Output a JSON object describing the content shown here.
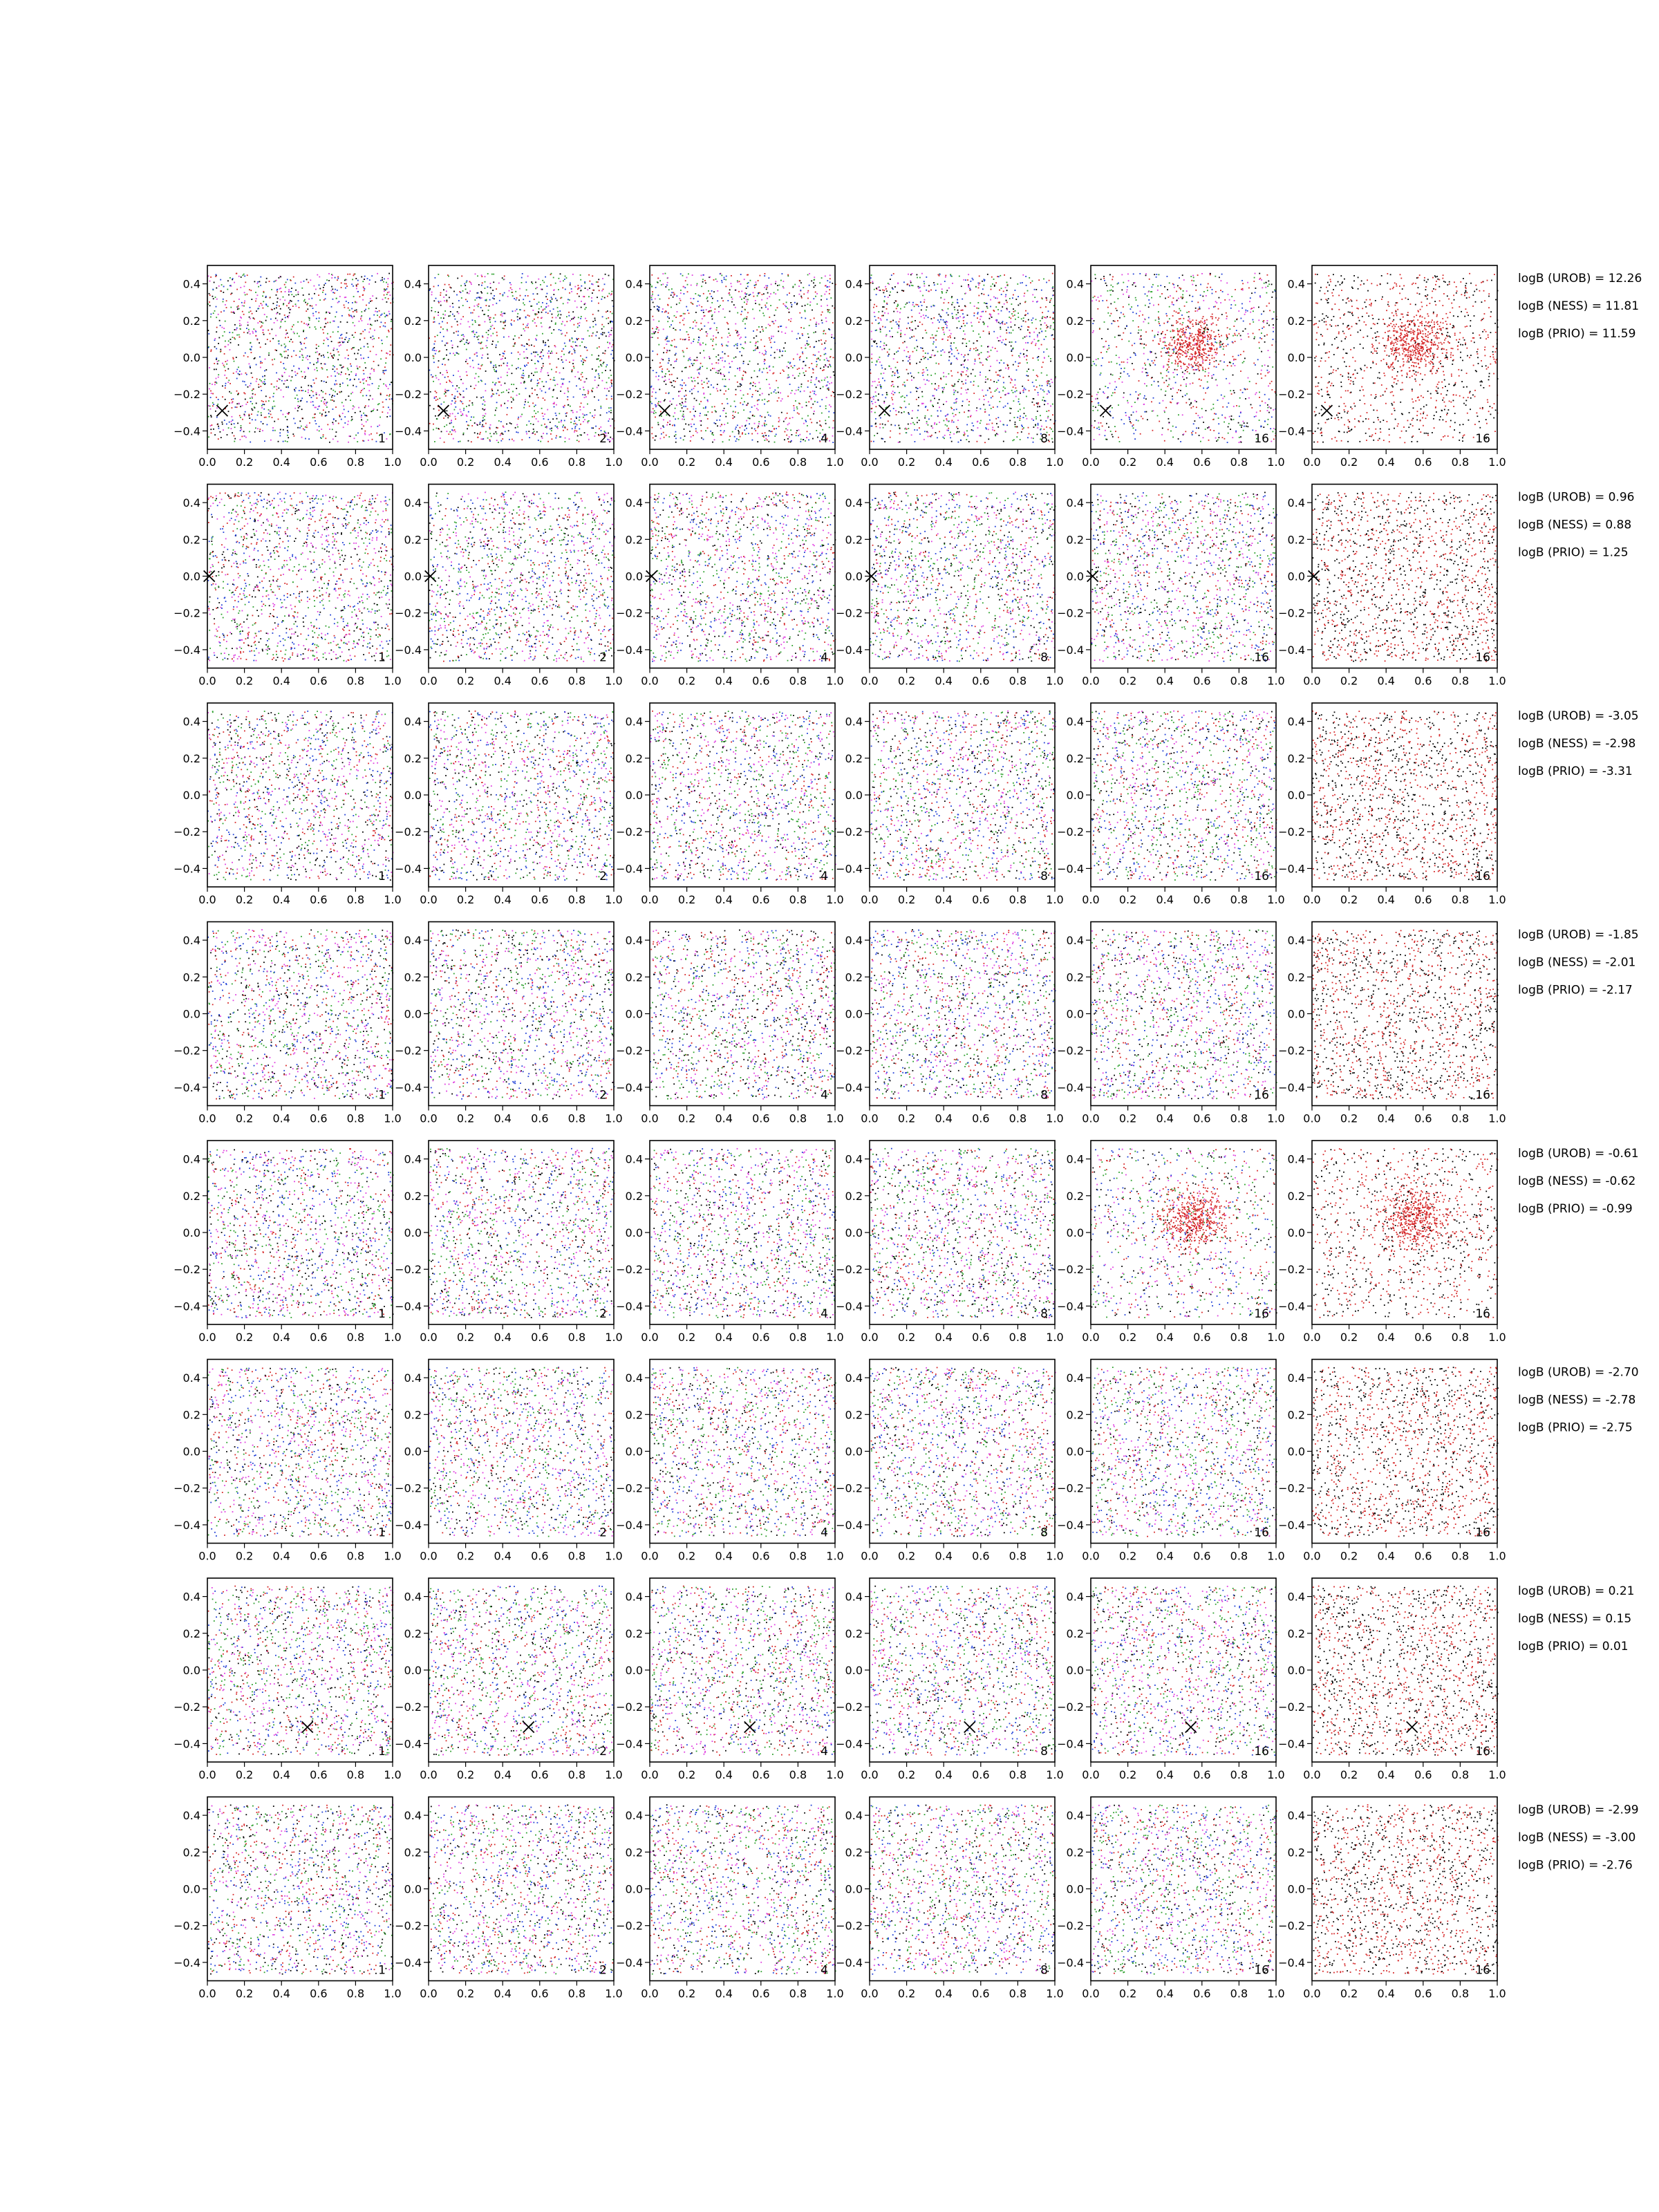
{
  "chart_data": {
    "type": "scatter",
    "layout": {
      "rows": 8,
      "cols": 6
    },
    "xlim": [
      0.0,
      1.0
    ],
    "ylim": [
      -0.5,
      0.5
    ],
    "x_ticks": [
      0.0,
      0.2,
      0.4,
      0.6,
      0.8,
      1.0
    ],
    "x_tick_labels": [
      "0.0",
      "0.2",
      "0.4",
      "0.6",
      "0.8",
      "1.0"
    ],
    "y_ticks": [
      -0.4,
      -0.2,
      0.0,
      0.2,
      0.4
    ],
    "y_tick_labels": [
      "−0.4",
      "−0.2",
      "0.0",
      "0.2",
      "0.4"
    ],
    "grid": false,
    "column_labels": [
      "1",
      "2",
      "4",
      "8",
      "16",
      "16"
    ],
    "column_point_colors": [
      [
        "#d62728",
        "#1f3fd6",
        "#2ca02c",
        "#000000",
        "#e040e0"
      ],
      [
        "#d62728",
        "#1f3fd6",
        "#2ca02c",
        "#000000",
        "#e040e0"
      ],
      [
        "#d62728",
        "#1f3fd6",
        "#2ca02c",
        "#000000",
        "#e040e0"
      ],
      [
        "#d62728",
        "#1f3fd6",
        "#2ca02c",
        "#000000",
        "#e040e0"
      ],
      [
        "#d62728",
        "#1f3fd6",
        "#2ca02c",
        "#000000",
        "#e040e0"
      ],
      [
        "#d62728",
        "#000000"
      ]
    ],
    "points_per_panel": 1400,
    "rows": [
      {
        "marker": {
          "x": 0.08,
          "y": -0.29
        },
        "annotations": [
          "logB (UROB) = 12.26",
          "logB (NESS) = 11.81",
          "logB (PRIO) = 11.59"
        ]
      },
      {
        "marker": {
          "x": 0.01,
          "y": 0.0
        },
        "annotations": [
          "logB (UROB) = 0.96",
          "logB (NESS) = 0.88",
          "logB (PRIO) = 1.25"
        ]
      },
      {
        "marker": null,
        "annotations": [
          "logB (UROB) = -3.05",
          "logB (NESS) = -2.98",
          "logB (PRIO) = -3.31"
        ]
      },
      {
        "marker": null,
        "annotations": [
          "logB (UROB) = -1.85",
          "logB (NESS) = -2.01",
          "logB (PRIO) = -2.17"
        ]
      },
      {
        "marker": null,
        "annotations": [
          "logB (UROB) = -0.61",
          "logB (NESS) = -0.62",
          "logB (PRIO) = -0.99"
        ]
      },
      {
        "marker": null,
        "annotations": [
          "logB (UROB) = -2.70",
          "logB (NESS) = -2.78",
          "logB (PRIO) = -2.75"
        ]
      },
      {
        "marker": {
          "x": 0.54,
          "y": -0.31
        },
        "annotations": [
          "logB (UROB) = 0.21",
          "logB (NESS) = 0.15",
          "logB (PRIO) = 0.01"
        ]
      },
      {
        "marker": null,
        "annotations": [
          "logB (UROB) = -2.99",
          "logB (NESS) = -3.00",
          "logB (PRIO) = -2.76"
        ]
      }
    ]
  }
}
